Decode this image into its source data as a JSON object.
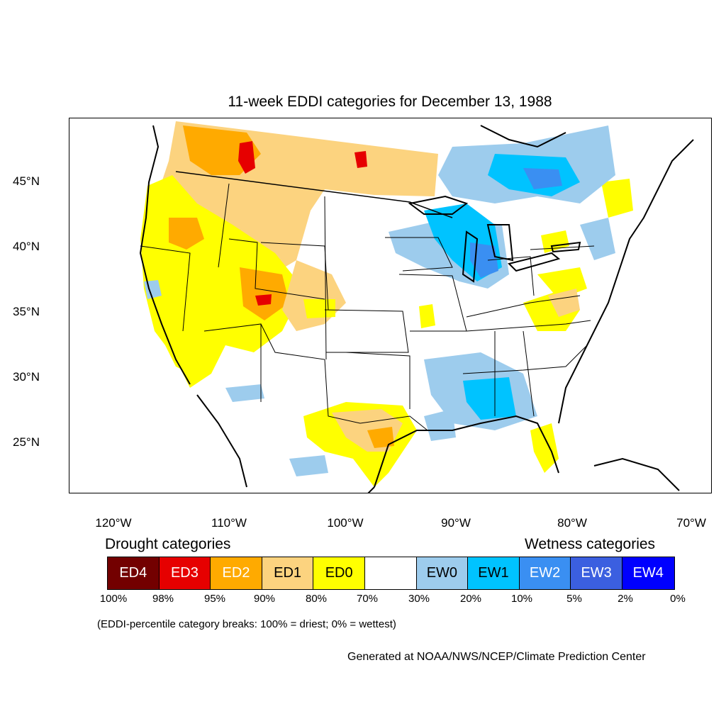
{
  "title": "11-week EDDI categories for December 13, 1988",
  "lat_labels": [
    "45°N",
    "40°N",
    "35°N",
    "30°N",
    "25°N"
  ],
  "lon_labels": [
    "120°W",
    "110°W",
    "100°W",
    "90°W",
    "80°W",
    "70°W"
  ],
  "legend": {
    "drought_heading": "Drought categories",
    "wetness_heading": "Wetness categories",
    "categories": [
      {
        "label": "ED4",
        "color": "#730000",
        "text_color": "#ffffff"
      },
      {
        "label": "ED3",
        "color": "#e60000",
        "text_color": "#ffffff"
      },
      {
        "label": "ED2",
        "color": "#ffaa00",
        "text_color": "#ffffff"
      },
      {
        "label": "ED1",
        "color": "#fcd37f",
        "text_color": "#000000"
      },
      {
        "label": "ED0",
        "color": "#ffff00",
        "text_color": "#000000"
      },
      {
        "label": "",
        "color": "#ffffff",
        "text_color": "#000000"
      },
      {
        "label": "EW0",
        "color": "#9dcced",
        "text_color": "#000000"
      },
      {
        "label": "EW1",
        "color": "#00c3ff",
        "text_color": "#000000"
      },
      {
        "label": "EW2",
        "color": "#3a8ff2",
        "text_color": "#ffffff"
      },
      {
        "label": "EW3",
        "color": "#3b5fe0",
        "text_color": "#ffffff"
      },
      {
        "label": "EW4",
        "color": "#0000ff",
        "text_color": "#ffffff"
      }
    ],
    "breaks": [
      "100%",
      "98%",
      "95%",
      "90%",
      "80%",
      "70%",
      "30%",
      "20%",
      "10%",
      "5%",
      "2%",
      "0%"
    ]
  },
  "breaks_note": "(EDDI-percentile category breaks: 100% = driest; 0% = wettest)",
  "credit": "Generated at NOAA/NWS/NCEP/Climate Prediction Center"
}
